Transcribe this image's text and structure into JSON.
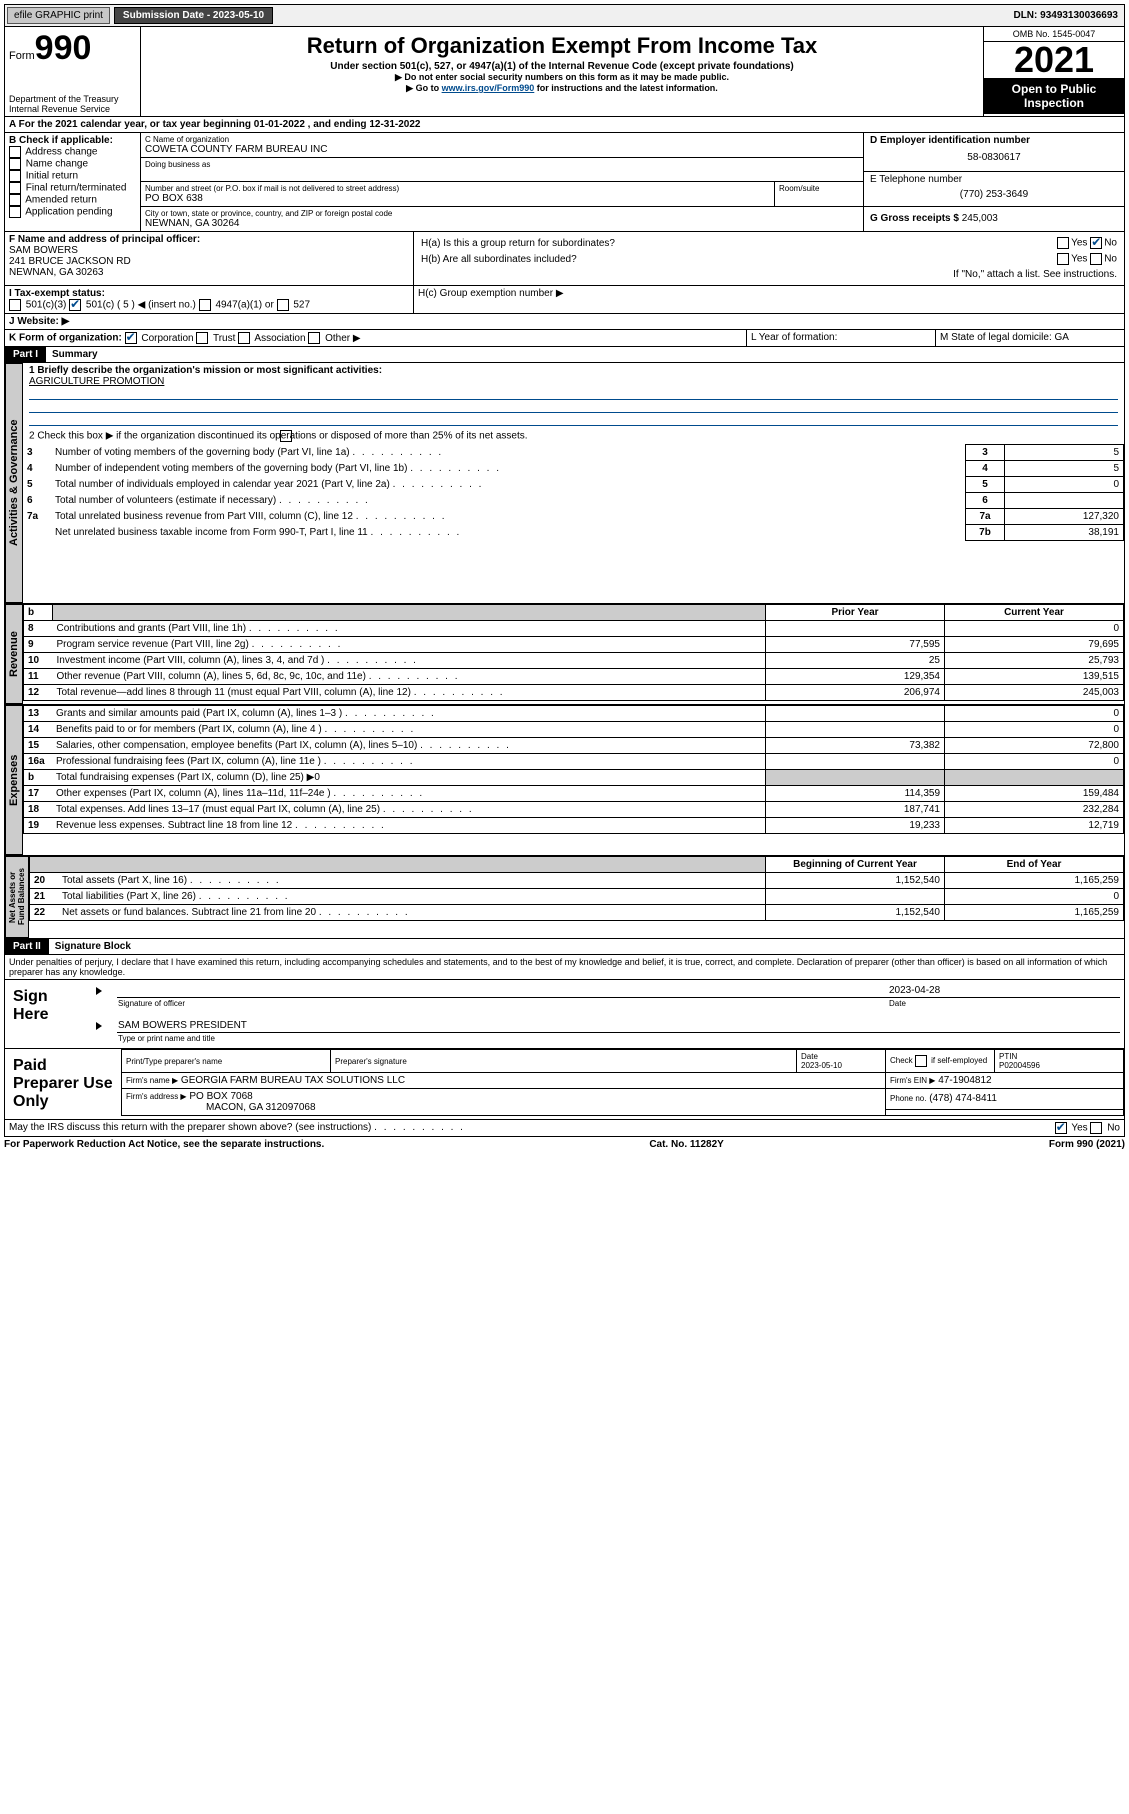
{
  "topbar": {
    "efile": "efile GRAPHIC print",
    "submission": "Submission Date - 2023-05-10",
    "dln": "DLN: 93493130036693"
  },
  "header": {
    "form_prefix": "Form",
    "form_num": "990",
    "dept": "Department of the Treasury",
    "irs": "Internal Revenue Service",
    "title": "Return of Organization Exempt From Income Tax",
    "sub": "Under section 501(c), 527, or 4947(a)(1) of the Internal Revenue Code (except private foundations)",
    "note1": "▶ Do not enter social security numbers on this form as it may be made public.",
    "note2_pre": "▶ Go to ",
    "note2_link": "www.irs.gov/Form990",
    "note2_post": " for instructions and the latest information.",
    "omb": "OMB No. 1545-0047",
    "year": "2021",
    "open": "Open to Public Inspection"
  },
  "period": {
    "a_line": "A For the 2021 calendar year, or tax year beginning 01-01-2022   , and ending 12-31-2022"
  },
  "boxB": {
    "label": "B Check if applicable:",
    "opts": [
      "Address change",
      "Name change",
      "Initial return",
      "Final return/terminated",
      "Amended return",
      "Application pending"
    ]
  },
  "boxC": {
    "label_name": "C Name of organization",
    "name": "COWETA COUNTY FARM BUREAU INC",
    "dba_label": "Doing business as",
    "addr_label": "Number and street (or P.O. box if mail is not delivered to street address)",
    "room_label": "Room/suite",
    "addr": "PO BOX 638",
    "city_label": "City or town, state or province, country, and ZIP or foreign postal code",
    "city": "NEWNAN, GA  30264"
  },
  "boxD": {
    "label": "D Employer identification number",
    "ein": "58-0830617"
  },
  "boxE": {
    "label": "E Telephone number",
    "phone": "(770) 253-3649"
  },
  "boxG": {
    "label": "G Gross receipts $",
    "val": "245,003"
  },
  "boxF": {
    "label": "F Name and address of principal officer:",
    "name": "SAM BOWERS",
    "addr1": "241 BRUCE JACKSON RD",
    "addr2": "NEWNAN, GA  30263"
  },
  "boxH": {
    "a": "H(a)  Is this a group return for subordinates?",
    "b": "H(b)  Are all subordinates included?",
    "note": "If \"No,\" attach a list. See instructions.",
    "c": "H(c)  Group exemption number ▶",
    "yes": "Yes",
    "no": "No"
  },
  "boxI": {
    "label": "I   Tax-exempt status:",
    "c3": "501(c)(3)",
    "c": "501(c) ( 5 ) ◀ (insert no.)",
    "a1": "4947(a)(1) or",
    "s527": "527"
  },
  "boxJ": {
    "label": "J   Website: ▶"
  },
  "boxK": {
    "label": "K Form of organization:",
    "opts": [
      "Corporation",
      "Trust",
      "Association",
      "Other ▶"
    ]
  },
  "boxL": {
    "label": "L Year of formation:"
  },
  "boxM": {
    "label": "M State of legal domicile: GA"
  },
  "part1": {
    "header": "Part I",
    "title": "Summary",
    "line1_label": "1  Briefly describe the organization's mission or most significant activities:",
    "line1_val": "AGRICULTURE PROMOTION",
    "line2": "2  Check this box ▶        if the organization discontinued its operations or disposed of more than 25% of its net assets.",
    "tabs": {
      "gov": "Activities & Governance",
      "rev": "Revenue",
      "exp": "Expenses",
      "net": "Net Assets or Fund Balances"
    },
    "rows_gov": [
      {
        "n": "3",
        "t": "Number of voting members of the governing body (Part VI, line 1a)",
        "k": "3",
        "v": "5"
      },
      {
        "n": "4",
        "t": "Number of independent voting members of the governing body (Part VI, line 1b)",
        "k": "4",
        "v": "5"
      },
      {
        "n": "5",
        "t": "Total number of individuals employed in calendar year 2021 (Part V, line 2a)",
        "k": "5",
        "v": "0"
      },
      {
        "n": "6",
        "t": "Total number of volunteers (estimate if necessary)",
        "k": "6",
        "v": ""
      },
      {
        "n": "7a",
        "t": "Total unrelated business revenue from Part VIII, column (C), line 12",
        "k": "7a",
        "v": "127,320"
      },
      {
        "n": "",
        "t": "Net unrelated business taxable income from Form 990-T, Part I, line 11",
        "k": "7b",
        "v": "38,191"
      }
    ],
    "col_headers": {
      "b": "b",
      "prior": "Prior Year",
      "current": "Current Year",
      "begin": "Beginning of Current Year",
      "end": "End of Year"
    },
    "rows_rev": [
      {
        "n": "8",
        "t": "Contributions and grants (Part VIII, line 1h)",
        "p": "",
        "c": "0"
      },
      {
        "n": "9",
        "t": "Program service revenue (Part VIII, line 2g)",
        "p": "77,595",
        "c": "79,695"
      },
      {
        "n": "10",
        "t": "Investment income (Part VIII, column (A), lines 3, 4, and 7d )",
        "p": "25",
        "c": "25,793"
      },
      {
        "n": "11",
        "t": "Other revenue (Part VIII, column (A), lines 5, 6d, 8c, 9c, 10c, and 11e)",
        "p": "129,354",
        "c": "139,515"
      },
      {
        "n": "12",
        "t": "Total revenue—add lines 8 through 11 (must equal Part VIII, column (A), line 12)",
        "p": "206,974",
        "c": "245,003"
      }
    ],
    "rows_exp": [
      {
        "n": "13",
        "t": "Grants and similar amounts paid (Part IX, column (A), lines 1–3 )",
        "p": "",
        "c": "0"
      },
      {
        "n": "14",
        "t": "Benefits paid to or for members (Part IX, column (A), line 4 )",
        "p": "",
        "c": "0"
      },
      {
        "n": "15",
        "t": "Salaries, other compensation, employee benefits (Part IX, column (A), lines 5–10)",
        "p": "73,382",
        "c": "72,800"
      },
      {
        "n": "16a",
        "t": "Professional fundraising fees (Part IX, column (A), line 11e )",
        "p": "",
        "c": "0"
      },
      {
        "n": "b",
        "t": "Total fundraising expenses (Part IX, column (D), line 25) ▶0",
        "p": "",
        "c": "",
        "shade": true
      },
      {
        "n": "17",
        "t": "Other expenses (Part IX, column (A), lines 11a–11d, 11f–24e )",
        "p": "114,359",
        "c": "159,484"
      },
      {
        "n": "18",
        "t": "Total expenses. Add lines 13–17 (must equal Part IX, column (A), line 25)",
        "p": "187,741",
        "c": "232,284"
      },
      {
        "n": "19",
        "t": "Revenue less expenses. Subtract line 18 from line 12",
        "p": "19,233",
        "c": "12,719"
      }
    ],
    "rows_net": [
      {
        "n": "20",
        "t": "Total assets (Part X, line 16)",
        "p": "1,152,540",
        "c": "1,165,259"
      },
      {
        "n": "21",
        "t": "Total liabilities (Part X, line 26)",
        "p": "",
        "c": "0"
      },
      {
        "n": "22",
        "t": "Net assets or fund balances. Subtract line 21 from line 20",
        "p": "1,152,540",
        "c": "1,165,259"
      }
    ]
  },
  "part2": {
    "header": "Part II",
    "title": "Signature Block",
    "declaration": "Under penalties of perjury, I declare that I have examined this return, including accompanying schedules and statements, and to the best of my knowledge and belief, it is true, correct, and complete. Declaration of preparer (other than officer) is based on all information of which preparer has any knowledge.",
    "sign_here": "Sign Here",
    "sig_officer": "Signature of officer",
    "date": "Date",
    "date_val": "2023-04-28",
    "officer_name": "SAM BOWERS  PRESIDENT",
    "type_name": "Type or print name and title",
    "paid": "Paid Preparer Use Only",
    "prep_name_label": "Print/Type preparer's name",
    "prep_sig_label": "Preparer's signature",
    "prep_date_label": "Date",
    "prep_date": "2023-05-10",
    "check_if": "Check        if self-employed",
    "ptin_label": "PTIN",
    "ptin": "P02004596",
    "firm_name_label": "Firm's name   ▶",
    "firm_name": "GEORGIA FARM BUREAU TAX SOLUTIONS LLC",
    "firm_ein_label": "Firm's EIN ▶",
    "firm_ein": "47-1904812",
    "firm_addr_label": "Firm's address ▶",
    "firm_addr1": "PO BOX 7068",
    "firm_addr2": "MACON, GA  312097068",
    "phone_label": "Phone no.",
    "phone": "(478) 474-8411",
    "may_irs": "May the IRS discuss this return with the preparer shown above? (see instructions)",
    "paperwork": "For Paperwork Reduction Act Notice, see the separate instructions.",
    "cat": "Cat. No. 11282Y",
    "formfoot": "Form 990 (2021)"
  }
}
